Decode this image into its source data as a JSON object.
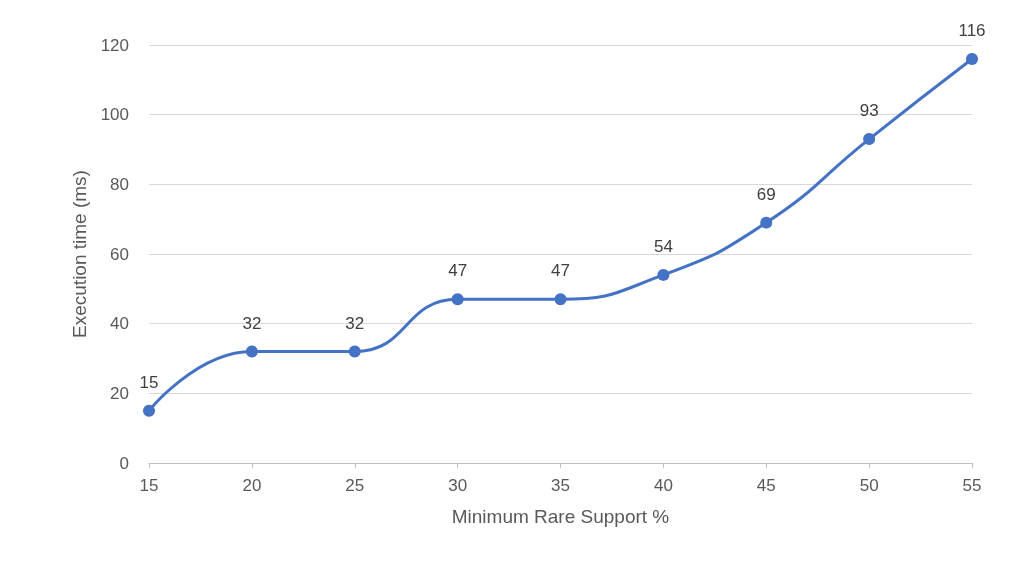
{
  "chart_data": {
    "type": "line",
    "xlabel": "Minimum Rare Support %",
    "ylabel": "Execution time (ms)",
    "categories": [
      "15",
      "20",
      "25",
      "30",
      "35",
      "40",
      "45",
      "50",
      "55"
    ],
    "series": [
      {
        "color": "#4472c4",
        "values": [
          15,
          32,
          32,
          47,
          47,
          54,
          69,
          93,
          116
        ]
      }
    ],
    "ylim": [
      0,
      120
    ],
    "yticks": [
      0,
      20,
      40,
      60,
      80,
      100,
      120
    ],
    "grid": "y",
    "marker": "circle",
    "data_labels": true
  }
}
